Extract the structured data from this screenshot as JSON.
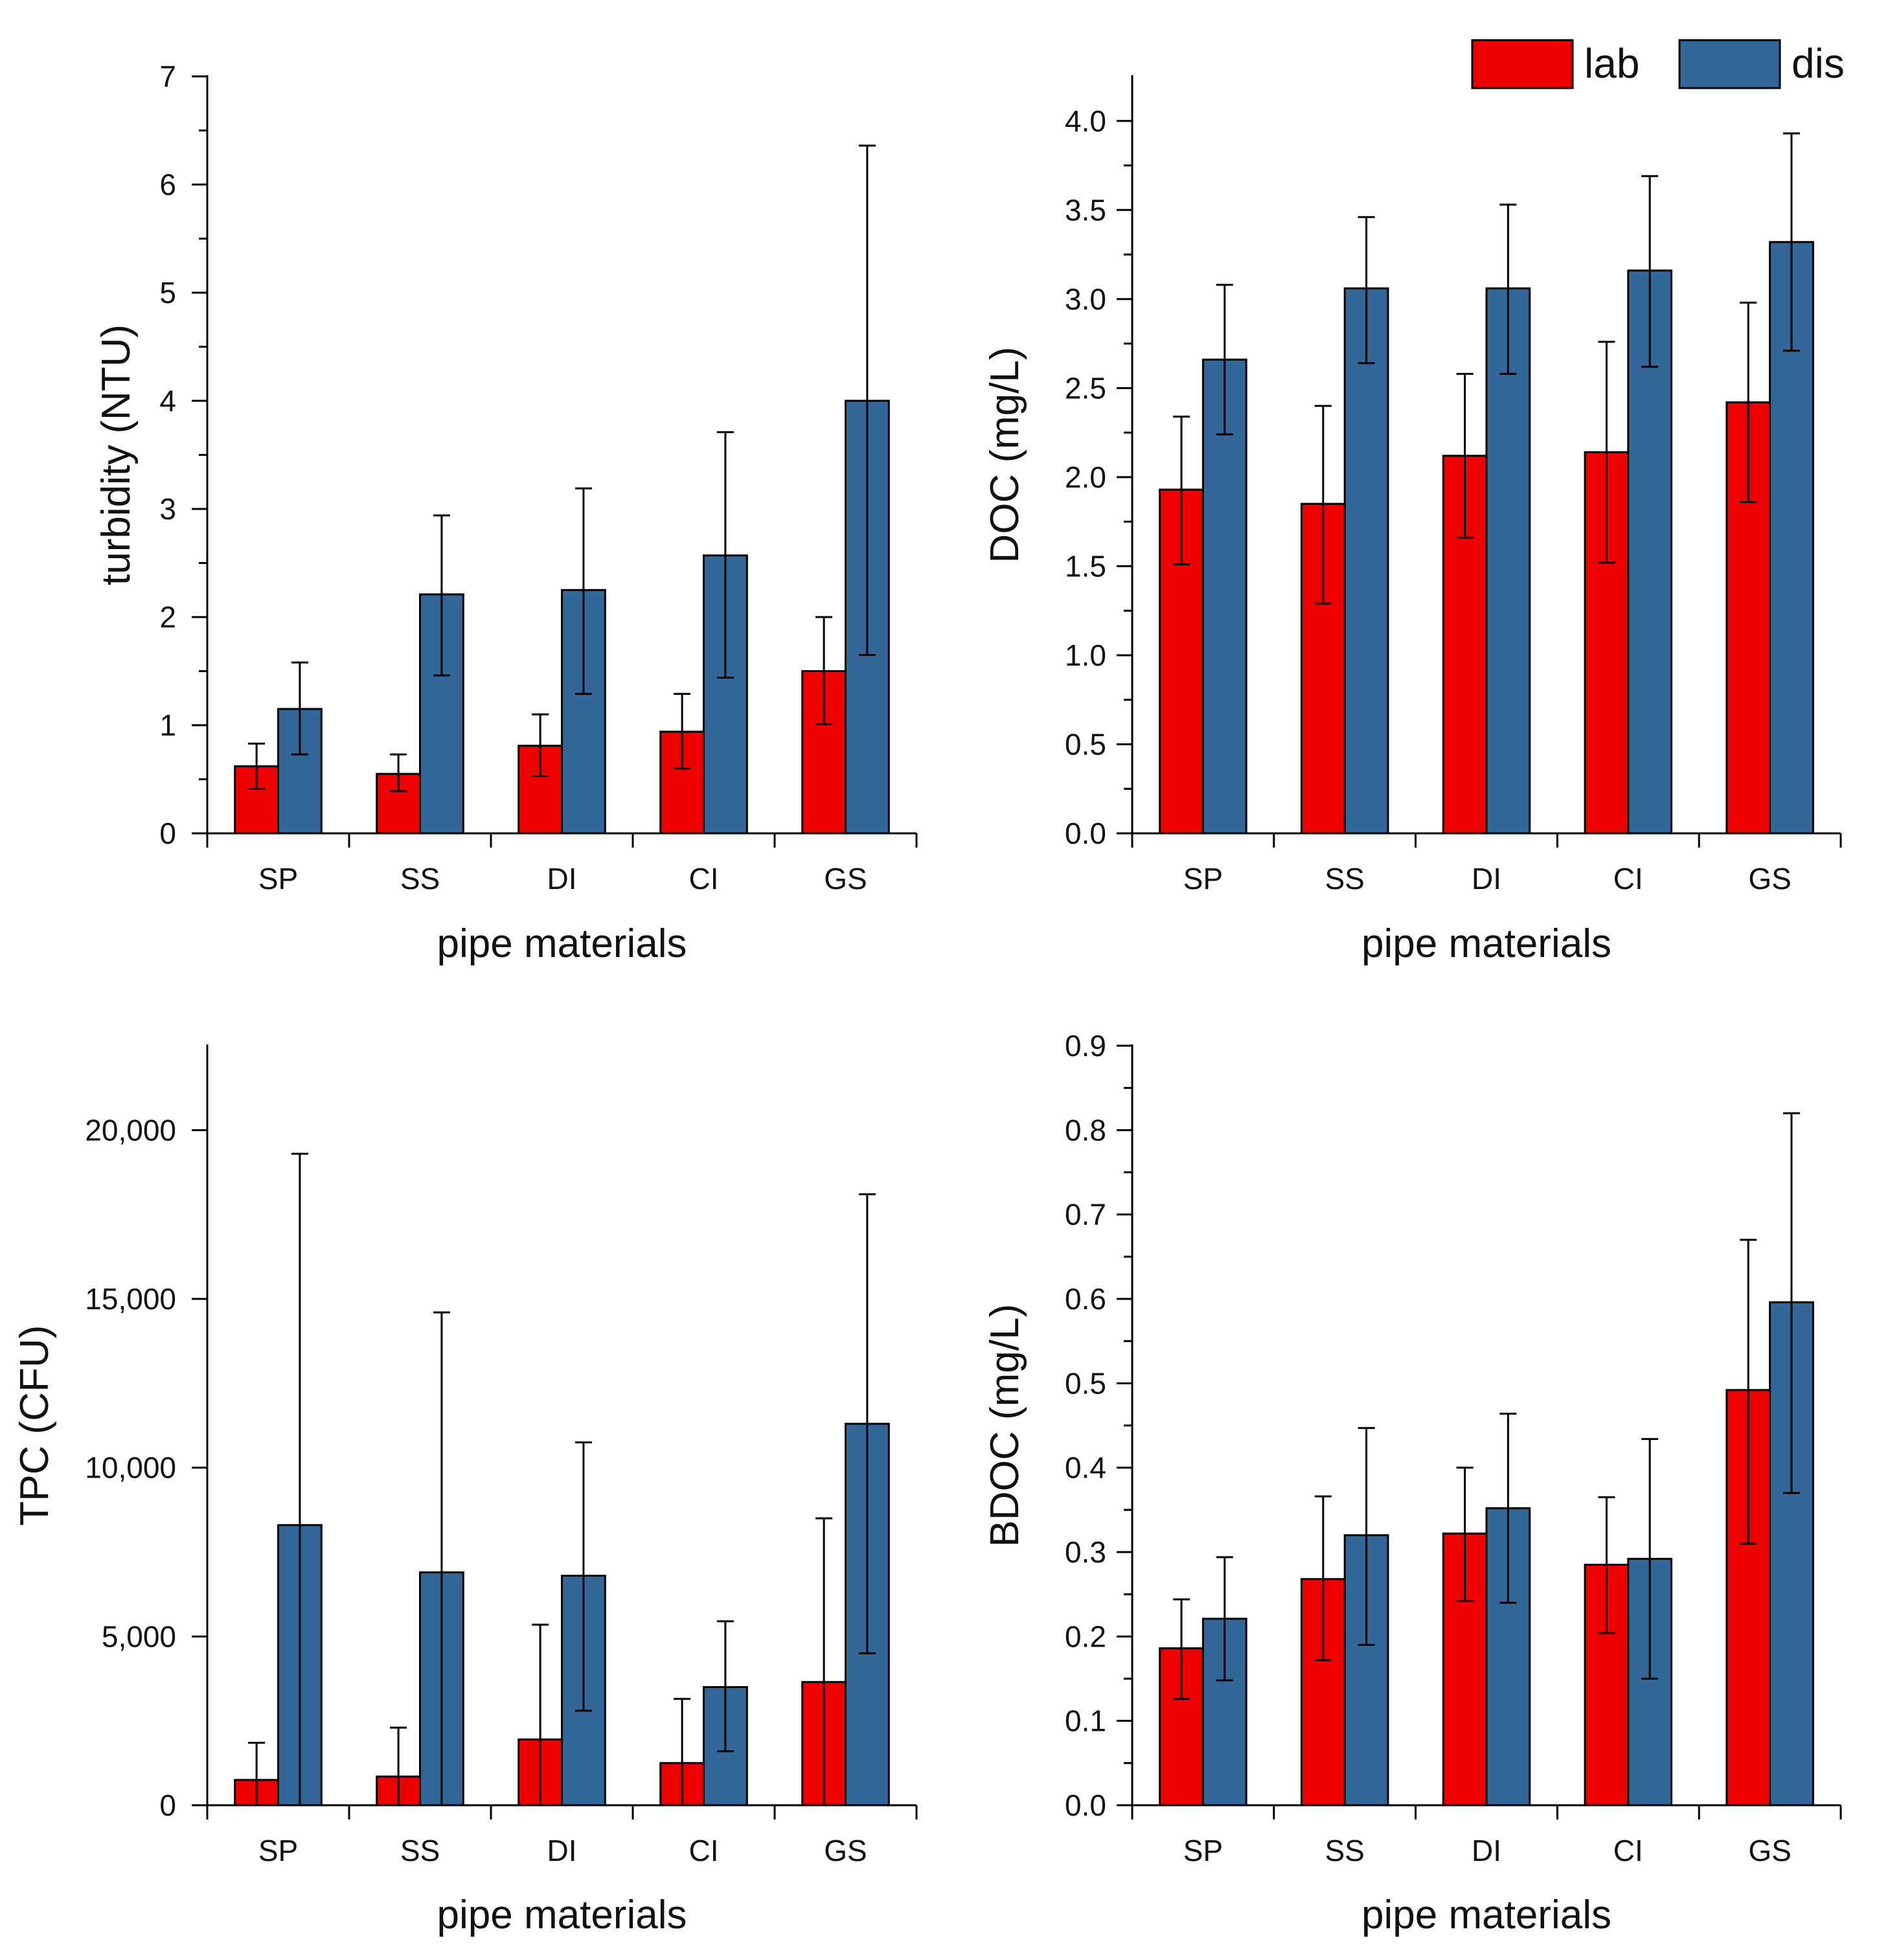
{
  "colors": {
    "lab": "#ee0000",
    "dis": "#336699",
    "axis": "#000000"
  },
  "legend": {
    "placement": "top-right",
    "items": [
      {
        "label": "lab",
        "color_key": "lab"
      },
      {
        "label": "dis",
        "color_key": "dis"
      }
    ]
  },
  "chart_data": [
    {
      "id": "turbidity",
      "type": "bar",
      "title": "",
      "xlabel": "pipe materials",
      "ylabel": "turbidity (NTU)",
      "categories": [
        "SP",
        "SS",
        "DI",
        "CI",
        "GS"
      ],
      "ylim": [
        0,
        7
      ],
      "yticks": [
        0,
        1,
        2,
        3,
        4,
        5,
        6,
        7
      ],
      "ytick_labels": [
        "0",
        "1",
        "2",
        "3",
        "4",
        "5",
        "6",
        "7"
      ],
      "minor_ticks": true,
      "series": [
        {
          "name": "lab",
          "values": [
            0.62,
            0.55,
            0.81,
            0.94,
            1.5
          ],
          "err_low": [
            0.41,
            0.39,
            0.53,
            0.6,
            1.01
          ],
          "err_high": [
            0.83,
            0.73,
            1.1,
            1.29,
            2.0
          ]
        },
        {
          "name": "dis",
          "values": [
            1.15,
            2.21,
            2.25,
            2.57,
            4.0
          ],
          "err_low": [
            0.73,
            1.46,
            1.29,
            1.44,
            1.65
          ],
          "err_high": [
            1.58,
            2.94,
            3.19,
            3.71,
            6.36
          ]
        }
      ]
    },
    {
      "id": "doc",
      "type": "bar",
      "title": "",
      "xlabel": "pipe materials",
      "ylabel": "DOC (mg/L)",
      "categories": [
        "SP",
        "SS",
        "DI",
        "CI",
        "GS"
      ],
      "ylim": [
        0,
        4.25
      ],
      "yticks": [
        0,
        0.5,
        1.0,
        1.5,
        2.0,
        2.5,
        3.0,
        3.5,
        4.0
      ],
      "ytick_labels": [
        "0.0",
        "0.5",
        "1.0",
        "1.5",
        "2.0",
        "2.5",
        "3.0",
        "3.5",
        "4.0"
      ],
      "minor_ticks": true,
      "series": [
        {
          "name": "lab",
          "values": [
            1.93,
            1.85,
            2.12,
            2.14,
            2.42
          ],
          "err_low": [
            1.51,
            1.29,
            1.66,
            1.52,
            1.86
          ],
          "err_high": [
            2.34,
            2.4,
            2.58,
            2.76,
            2.98
          ]
        },
        {
          "name": "dis",
          "values": [
            2.66,
            3.06,
            3.06,
            3.16,
            3.32
          ],
          "err_low": [
            2.24,
            2.64,
            2.58,
            2.62,
            2.71
          ],
          "err_high": [
            3.08,
            3.46,
            3.53,
            3.69,
            3.93
          ]
        }
      ]
    },
    {
      "id": "tpc",
      "type": "bar",
      "title": "",
      "xlabel": "pipe materials",
      "ylabel": "TPC (CFU)",
      "categories": [
        "SP",
        "SS",
        "DI",
        "CI",
        "GS"
      ],
      "ylim": [
        0,
        22500
      ],
      "yticks": [
        0,
        5000,
        10000,
        15000,
        20000
      ],
      "ytick_labels": [
        "0",
        "5,000",
        "10,000",
        "15,000",
        "20,000"
      ],
      "minor_ticks": false,
      "series": [
        {
          "name": "lab",
          "values": [
            750,
            850,
            1950,
            1250,
            3650
          ],
          "err_low": [
            0,
            0,
            0,
            0,
            0
          ],
          "err_high": [
            1850,
            2300,
            5350,
            3150,
            8500
          ]
        },
        {
          "name": "dis",
          "values": [
            8300,
            6900,
            6800,
            3500,
            11300
          ],
          "err_low": [
            0,
            0,
            2800,
            1600,
            4500
          ],
          "err_high": [
            19300,
            14600,
            10750,
            5450,
            18100
          ]
        }
      ]
    },
    {
      "id": "bdoc",
      "type": "bar",
      "title": "",
      "xlabel": "pipe materials",
      "ylabel": "BDOC (mg/L)",
      "categories": [
        "SP",
        "SS",
        "DI",
        "CI",
        "GS"
      ],
      "ylim": [
        0,
        0.9
      ],
      "yticks": [
        0,
        0.1,
        0.2,
        0.3,
        0.4,
        0.5,
        0.6,
        0.7,
        0.8,
        0.9
      ],
      "ytick_labels": [
        "0.0",
        "0.1",
        "0.2",
        "0.3",
        "0.4",
        "0.5",
        "0.6",
        "0.7",
        "0.8",
        "0.9"
      ],
      "minor_ticks": true,
      "series": [
        {
          "name": "lab",
          "values": [
            0.186,
            0.268,
            0.322,
            0.285,
            0.492
          ],
          "err_low": [
            0.126,
            0.172,
            0.242,
            0.204,
            0.31
          ],
          "err_high": [
            0.244,
            0.366,
            0.4,
            0.365,
            0.67
          ]
        },
        {
          "name": "dis",
          "values": [
            0.221,
            0.32,
            0.352,
            0.292,
            0.596
          ],
          "err_low": [
            0.148,
            0.19,
            0.24,
            0.15,
            0.37
          ],
          "err_high": [
            0.294,
            0.447,
            0.464,
            0.434,
            0.82
          ]
        }
      ]
    }
  ]
}
